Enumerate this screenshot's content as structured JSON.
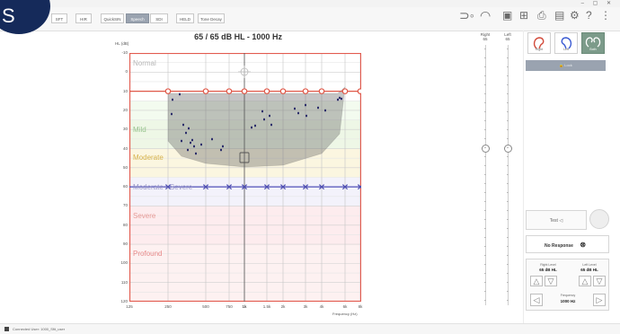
{
  "logo": {
    "letter": "S"
  },
  "window": {
    "controls": "– ▢ ✕"
  },
  "tabs": [
    "SFT",
    "HIR",
    "QuickSIN",
    "Speech",
    "SDI",
    "HELD",
    "Tone Decay"
  ],
  "active_tab": "Speech",
  "toolbar_icons": [
    "speaker-icon",
    "headphones-icon",
    "screens-icon",
    "grid-icon",
    "print-icon",
    "save-icon",
    "gear-icon",
    "help-icon",
    "more-icon"
  ],
  "audiogram": {
    "title": "65 / 65 dB HL  -  1000 Hz",
    "y_axis_label": "HL (dB)",
    "x_axis_label": "Frequency (Hz)",
    "y_ticks": [
      "-10",
      "0",
      "10",
      "20",
      "30",
      "40",
      "50",
      "60",
      "70",
      "80",
      "90",
      "100",
      "110",
      "120"
    ],
    "x_ticks": [
      "125",
      "250",
      "500",
      "750",
      "1k",
      "1.5k",
      "2k",
      "3k",
      "4k",
      "6k",
      "8k"
    ],
    "x_tick_bold": "1k",
    "categories": [
      {
        "label": "Normal",
        "color": "#b8b8b8"
      },
      {
        "label": "Mild",
        "color": "#98c48e"
      },
      {
        "label": "Moderate",
        "color": "#d6b24c"
      },
      {
        "label": "Moderate - Severe",
        "color": "#9a98c8"
      },
      {
        "label": "Severe",
        "color": "#e79a96"
      },
      {
        "label": "Profound",
        "color": "#e88a8a"
      }
    ],
    "right_ear_levels": [
      10,
      10,
      10,
      10,
      10,
      10,
      10,
      10,
      10,
      10
    ],
    "left_ear_levels": [
      60,
      60,
      60,
      60,
      60,
      60,
      60,
      60,
      60,
      60
    ]
  },
  "sliders": {
    "right": {
      "label": "Right",
      "value": "65",
      "level": 65
    },
    "left": {
      "label": "Left",
      "value": "65",
      "level": 65
    }
  },
  "ears": [
    {
      "label": "Right",
      "selected": false
    },
    {
      "label": "Left",
      "selected": false
    },
    {
      "label": "Both",
      "selected": true
    }
  ],
  "lock_button": "🔒 Lock",
  "test_button": "Test",
  "test_arrow": "◁",
  "no_response": {
    "label": "No Response",
    "icon": "⊗"
  },
  "levels": {
    "right": {
      "label": "Right Level",
      "value": "65 dB HL"
    },
    "left": {
      "label": "Left Level",
      "value": "65 dB HL"
    },
    "frequency": {
      "label": "Frequency",
      "value": "1000 Hz"
    }
  },
  "status": {
    "text": "Connected     User: 1000_Sfit_user"
  }
}
